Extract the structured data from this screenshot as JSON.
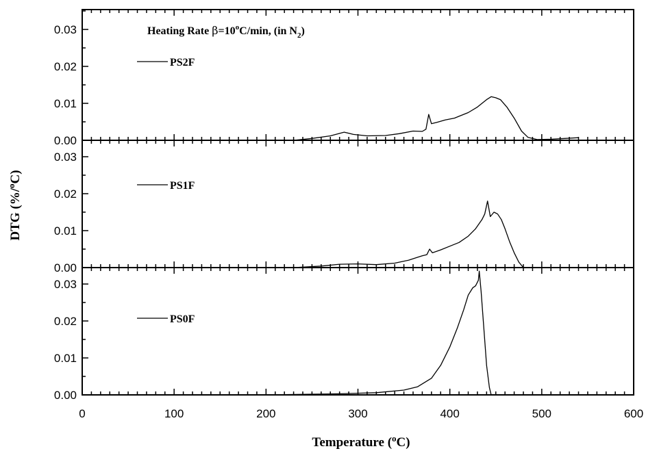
{
  "chart_data": {
    "type": "line",
    "annotation": {
      "prefix": "Heating Rate ",
      "beta": "β",
      "value": "=10",
      "deg": "o",
      "unit": "C/min,  (in N",
      "sub": "2",
      "close": ")"
    },
    "xlabel": {
      "main": "Temperature (",
      "sup": "o",
      "tail": "C)"
    },
    "ylabel": {
      "main": "DTG (%/",
      "sup": "o",
      "tail": "C)"
    },
    "xlim": [
      0,
      600
    ],
    "x_ticks": [
      "0",
      "100",
      "200",
      "300",
      "400",
      "500",
      "600"
    ],
    "ylim": [
      0,
      0.035
    ],
    "y_ticks": [
      "0.00",
      "0.01",
      "0.02",
      "0.03"
    ],
    "grid": false,
    "panels": [
      {
        "name": "PS2F",
        "points": [
          [
            230,
            0
          ],
          [
            250,
            0.0005
          ],
          [
            270,
            0.0012
          ],
          [
            285,
            0.0022
          ],
          [
            295,
            0.0016
          ],
          [
            310,
            0.0012
          ],
          [
            330,
            0.0013
          ],
          [
            345,
            0.0018
          ],
          [
            360,
            0.0025
          ],
          [
            370,
            0.0024
          ],
          [
            374,
            0.003
          ],
          [
            377,
            0.007
          ],
          [
            380,
            0.0045
          ],
          [
            385,
            0.0048
          ],
          [
            395,
            0.0055
          ],
          [
            405,
            0.006
          ],
          [
            410,
            0.0065
          ],
          [
            420,
            0.0075
          ],
          [
            430,
            0.009
          ],
          [
            440,
            0.011
          ],
          [
            445,
            0.0118
          ],
          [
            450,
            0.0115
          ],
          [
            455,
            0.011
          ],
          [
            462,
            0.009
          ],
          [
            470,
            0.006
          ],
          [
            478,
            0.0025
          ],
          [
            485,
            0.0008
          ],
          [
            495,
            0.0002
          ],
          [
            510,
            0.0003
          ],
          [
            525,
            0.0005
          ],
          [
            540,
            0.0007
          ]
        ]
      },
      {
        "name": "PS1F",
        "points": [
          [
            230,
            0
          ],
          [
            260,
            0.0004
          ],
          [
            280,
            0.0009
          ],
          [
            300,
            0.001
          ],
          [
            320,
            0.0008
          ],
          [
            340,
            0.0012
          ],
          [
            355,
            0.002
          ],
          [
            365,
            0.0028
          ],
          [
            370,
            0.0032
          ],
          [
            375,
            0.0035
          ],
          [
            378,
            0.005
          ],
          [
            381,
            0.004
          ],
          [
            390,
            0.0048
          ],
          [
            400,
            0.0058
          ],
          [
            410,
            0.0068
          ],
          [
            420,
            0.0085
          ],
          [
            428,
            0.0105
          ],
          [
            435,
            0.013
          ],
          [
            438,
            0.0145
          ],
          [
            441,
            0.018
          ],
          [
            444,
            0.0138
          ],
          [
            448,
            0.015
          ],
          [
            452,
            0.0145
          ],
          [
            456,
            0.013
          ],
          [
            460,
            0.0105
          ],
          [
            465,
            0.007
          ],
          [
            470,
            0.004
          ],
          [
            475,
            0.0015
          ],
          [
            480,
            0
          ]
        ]
      },
      {
        "name": "PS0F",
        "points": [
          [
            200,
            0
          ],
          [
            280,
            0.0003
          ],
          [
            320,
            0.0006
          ],
          [
            350,
            0.0013
          ],
          [
            365,
            0.0022
          ],
          [
            380,
            0.0045
          ],
          [
            390,
            0.008
          ],
          [
            400,
            0.013
          ],
          [
            408,
            0.018
          ],
          [
            415,
            0.023
          ],
          [
            420,
            0.027
          ],
          [
            425,
            0.029
          ],
          [
            428,
            0.0295
          ],
          [
            431,
            0.031
          ],
          [
            432,
            0.0335
          ],
          [
            434,
            0.028
          ],
          [
            437,
            0.018
          ],
          [
            440,
            0.008
          ],
          [
            443,
            0.002
          ],
          [
            445,
            0
          ]
        ]
      }
    ]
  }
}
